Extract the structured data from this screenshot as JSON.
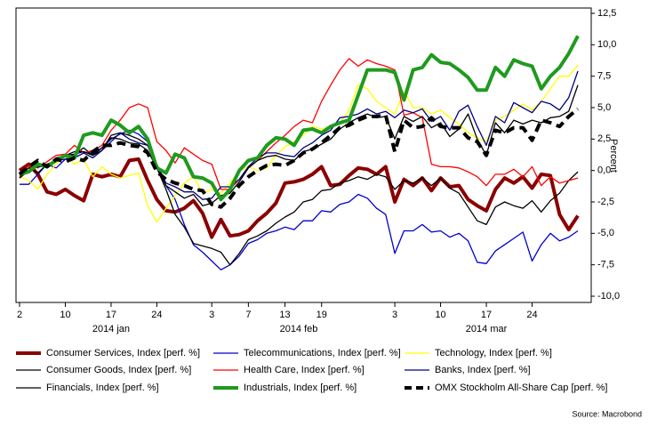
{
  "chart_data": {
    "type": "line",
    "y_label": "Percent",
    "source": "Source: Macrobond",
    "x": [
      "2014-01-02",
      "2014-01-03",
      "2014-01-07",
      "2014-01-08",
      "2014-01-09",
      "2014-01-10",
      "2014-01-13",
      "2014-01-14",
      "2014-01-15",
      "2014-01-16",
      "2014-01-17",
      "2014-01-20",
      "2014-01-21",
      "2014-01-22",
      "2014-01-23",
      "2014-01-24",
      "2014-01-27",
      "2014-01-28",
      "2014-01-29",
      "2014-01-30",
      "2014-01-31",
      "2014-02-03",
      "2014-02-04",
      "2014-02-05",
      "2014-02-06",
      "2014-02-07",
      "2014-02-10",
      "2014-02-11",
      "2014-02-12",
      "2014-02-13",
      "2014-02-14",
      "2014-02-17",
      "2014-02-18",
      "2014-02-19",
      "2014-02-20",
      "2014-02-21",
      "2014-02-24",
      "2014-02-25",
      "2014-02-26",
      "2014-02-27",
      "2014-02-28",
      "2014-03-03",
      "2014-03-04",
      "2014-03-05",
      "2014-03-06",
      "2014-03-07",
      "2014-03-10",
      "2014-03-11",
      "2014-03-12",
      "2014-03-13",
      "2014-03-14",
      "2014-03-17",
      "2014-03-18",
      "2014-03-19",
      "2014-03-20",
      "2014-03-21",
      "2014-03-24",
      "2014-03-25",
      "2014-03-26",
      "2014-03-27",
      "2014-03-28",
      "2014-03-31"
    ],
    "xticks": [
      {
        "value": "2014-01-02",
        "label": "2"
      },
      {
        "value": "2014-01-10",
        "label": "10"
      },
      {
        "value": "2014-01-17",
        "label": "17"
      },
      {
        "value": "2014-01-24",
        "label": "24"
      },
      {
        "value": "2014-02-03",
        "label": "3"
      },
      {
        "value": "2014-02-07",
        "label": "7"
      },
      {
        "value": "2014-02-13",
        "label": "13"
      },
      {
        "value": "2014-02-19",
        "label": "19"
      },
      {
        "value": "2014-03-03",
        "label": "3"
      },
      {
        "value": "2014-03-10",
        "label": "10"
      },
      {
        "value": "2014-03-17",
        "label": "17"
      },
      {
        "value": "2014-03-24",
        "label": "24"
      }
    ],
    "month_labels": [
      {
        "value": "2014-01",
        "label": "2014 jan"
      },
      {
        "value": "2014-02",
        "label": "2014 feb"
      },
      {
        "value": "2014-03",
        "label": "2014 mar"
      }
    ],
    "ylim": [
      -10,
      12.5
    ],
    "yticks": [
      {
        "value": 12.5,
        "label": "12,5"
      },
      {
        "value": 10,
        "label": "10,0"
      },
      {
        "value": 7.5,
        "label": "7,5"
      },
      {
        "value": 5,
        "label": "5,0"
      },
      {
        "value": 2.5,
        "label": "2,5"
      },
      {
        "value": 0,
        "label": "0,0"
      },
      {
        "value": -2.5,
        "label": "-2,5"
      },
      {
        "value": -5,
        "label": "-5,0"
      },
      {
        "value": -7.5,
        "label": "-7,5"
      },
      {
        "value": -10,
        "label": "-10,0"
      }
    ],
    "series": [
      {
        "name": "Consumer Services, Index [perf. %]",
        "color": "#8b0000",
        "width": 4,
        "dash": false,
        "values": [
          0,
          0.5,
          -0.3,
          -1.7,
          -1.9,
          -1.5,
          -2.0,
          -2.4,
          -0.3,
          -0.5,
          -0.3,
          -0.5,
          0.8,
          0.9,
          -0.8,
          -2.3,
          -3.2,
          -3.3,
          -3.0,
          -2.4,
          -3.4,
          -5.3,
          -3.9,
          -5.2,
          -5.1,
          -4.8,
          -4.0,
          -3.4,
          -2.6,
          -1.0,
          -0.9,
          -0.7,
          -0.3,
          0.3,
          -1.2,
          -1.1,
          -0.4,
          0.2,
          0.1,
          -0.3,
          0.3,
          -2.5,
          -0.7,
          -1.2,
          -0.6,
          -1.6,
          -0.6,
          -1.3,
          -1.2,
          -2.3,
          -2.8,
          -3.2,
          -1.5,
          -0.6,
          -1.0,
          -0.5,
          -1.4,
          -0.3,
          -0.4,
          -3.5,
          -4.7,
          -3.6
        ]
      },
      {
        "name": "Telecommunications, Index [perf. %]",
        "color": "#0000cc",
        "width": 1.3,
        "dash": false,
        "values": [
          -1.1,
          -1.1,
          -0.3,
          0.5,
          0.2,
          0.9,
          1.3,
          1.5,
          1.3,
          1.8,
          2.5,
          2.9,
          3.2,
          2.9,
          2.3,
          0.3,
          -1.2,
          -2.3,
          -4.3,
          -5.9,
          -6.5,
          -7.2,
          -7.9,
          -7.5,
          -6.8,
          -5.8,
          -5.5,
          -5.0,
          -4.8,
          -4.5,
          -4.7,
          -4.0,
          -4.0,
          -3.2,
          -3.3,
          -2.7,
          -2.5,
          -1.9,
          -2.2,
          -3.0,
          -3.5,
          -6.6,
          -4.8,
          -4.8,
          -4.3,
          -4.9,
          -4.8,
          -5.3,
          -5.0,
          -5.6,
          -7.3,
          -7.4,
          -6.4,
          -5.9,
          -5.4,
          -4.9,
          -7.2,
          -5.9,
          -5.0,
          -5.6,
          -5.3,
          -4.8
        ]
      },
      {
        "name": "Technology, Index [perf. %]",
        "color": "#ffff00",
        "width": 1.3,
        "dash": false,
        "values": [
          -0.5,
          -0.8,
          -1.5,
          -0.3,
          0.5,
          1.2,
          0.5,
          0.9,
          -0.5,
          0.3,
          -0.3,
          -0.6,
          -0.4,
          -0.2,
          -2.8,
          -4.1,
          -3.0,
          -2.0,
          -1.0,
          -0.5,
          -1.8,
          -1.5,
          -1.8,
          -1.0,
          0.0,
          0.3,
          0.0,
          0.2,
          1.2,
          1.9,
          2.3,
          2.8,
          3.5,
          3.3,
          3.5,
          3.8,
          4.8,
          6.8,
          6.5,
          5.5,
          5.0,
          4.5,
          6.3,
          5.0,
          5.0,
          4.5,
          4.8,
          4.2,
          3.7,
          3.0,
          2.6,
          2.3,
          4.0,
          4.3,
          4.8,
          5.3,
          4.8,
          5.5,
          6.5,
          7.5,
          7.5,
          8.4
        ]
      },
      {
        "name": "Consumer Goods, Index [perf. %]",
        "color": "#000000",
        "width": 1.3,
        "dash": false,
        "values": [
          -0.4,
          0.2,
          -0.2,
          0.5,
          0.8,
          1.2,
          1.3,
          1.8,
          1.2,
          1.6,
          2.8,
          3.0,
          2.8,
          2.5,
          2.0,
          0.2,
          -1.5,
          -3.5,
          -4.5,
          -5.8,
          -6.0,
          -6.2,
          -6.5,
          -7.5,
          -6.6,
          -5.5,
          -5.2,
          -4.8,
          -4.2,
          -3.7,
          -3.3,
          -2.5,
          -2.3,
          -1.6,
          -1.5,
          -1.0,
          -0.8,
          -0.5,
          -0.7,
          -0.3,
          -0.5,
          -1.5,
          -0.8,
          -1.0,
          -0.6,
          -1.2,
          -0.6,
          -1.4,
          -1.8,
          -2.9,
          -4.0,
          -4.3,
          -2.9,
          -2.5,
          -2.8,
          -3.0,
          -2.4,
          -3.3,
          -2.4,
          -1.8,
          -0.8,
          -0.1
        ]
      },
      {
        "name": "Health Care, Index [perf. %]",
        "color": "#ff0000",
        "width": 1.3,
        "dash": false,
        "values": [
          -0.5,
          0.4,
          0.2,
          0.7,
          1.2,
          1.3,
          2.0,
          1.4,
          1.6,
          2.0,
          3.2,
          4.0,
          5.0,
          5.3,
          5.0,
          2.3,
          1.6,
          0.6,
          1.8,
          1.3,
          0.8,
          0.5,
          -1.5,
          -1.5,
          -0.7,
          0.2,
          0.8,
          1.5,
          2.2,
          2.8,
          3.5,
          4.0,
          3.8,
          5.5,
          6.8,
          8.0,
          8.9,
          8.3,
          8.8,
          8.5,
          8.3,
          8.0,
          4.4,
          4.6,
          4.2,
          0.5,
          0.3,
          0.3,
          0.2,
          -0.1,
          -0.5,
          -1.2,
          -0.3,
          -0.3,
          0.1,
          -0.5,
          0.3,
          -1.2,
          -0.5,
          -1.0,
          -0.8,
          -0.6
        ]
      },
      {
        "name": "Banks, Index [perf. %]",
        "color": "#000080",
        "width": 1.3,
        "dash": false,
        "values": [
          -0.6,
          0.0,
          0.3,
          0.3,
          0.8,
          0.9,
          1.0,
          1.4,
          1.0,
          1.6,
          2.3,
          3.0,
          2.5,
          2.2,
          2.0,
          0.5,
          -1.0,
          -1.3,
          -1.7,
          -1.7,
          -2.3,
          -2.2,
          -1.3,
          -1.3,
          -0.7,
          0.3,
          1.0,
          1.4,
          1.4,
          1.2,
          1.1,
          1.8,
          2.2,
          2.8,
          3.2,
          4.2,
          4.3,
          4.5,
          4.9,
          4.5,
          4.7,
          4.2,
          4.8,
          4.6,
          4.9,
          3.9,
          4.3,
          3.2,
          4.7,
          5.2,
          3.5,
          2.0,
          4.3,
          3.8,
          5.4,
          5.0,
          4.6,
          5.5,
          5.3,
          4.8,
          5.8,
          7.9
        ]
      },
      {
        "name": "Financials, Index [perf. %]",
        "color": "#000000",
        "width": 1.3,
        "dash": false,
        "values": [
          -0.6,
          0.0,
          0.4,
          0.3,
          1.0,
          1.2,
          1.5,
          1.5,
          1.2,
          1.8,
          2.6,
          2.5,
          2.2,
          2.1,
          1.6,
          0.2,
          -1.2,
          -1.7,
          -2.2,
          -1.9,
          -2.8,
          -2.6,
          -2.0,
          -1.8,
          -0.9,
          0.2,
          0.8,
          1.1,
          1.2,
          0.9,
          0.8,
          1.5,
          1.7,
          2.1,
          2.5,
          3.3,
          3.8,
          4.2,
          4.5,
          4.2,
          4.3,
          2.5,
          4.3,
          3.9,
          4.3,
          3.4,
          3.8,
          2.7,
          3.3,
          4.5,
          2.5,
          1.2,
          3.8,
          3.0,
          4.0,
          3.7,
          4.0,
          3.8,
          4.2,
          4.3,
          4.7,
          6.8
        ]
      },
      {
        "name": "Industrials, Index [perf. %]",
        "color": "#1f9a1f",
        "width": 4,
        "dash": false,
        "values": [
          -0.3,
          -0.1,
          0.5,
          0.3,
          0.8,
          1.2,
          1.0,
          2.8,
          3.0,
          2.8,
          4.0,
          3.6,
          3.0,
          3.5,
          2.5,
          0.2,
          -0.2,
          1.3,
          1.0,
          -0.5,
          -0.6,
          -1.0,
          -2.3,
          -1.5,
          0.0,
          0.8,
          1.0,
          2.0,
          2.6,
          2.5,
          2.0,
          3.2,
          3.3,
          3.0,
          3.5,
          3.8,
          4.0,
          6.0,
          8.0,
          8.0,
          8.0,
          7.8,
          5.6,
          8.0,
          8.2,
          9.2,
          8.6,
          8.5,
          8.0,
          7.4,
          6.4,
          6.4,
          8.2,
          7.5,
          8.8,
          8.5,
          8.3,
          6.5,
          7.5,
          8.2,
          9.3,
          10.7
        ]
      },
      {
        "name": "OMX Stockholm All-Share Cap [perf. %]",
        "color": "#000000",
        "width": 4,
        "dash": true,
        "values": [
          -0.3,
          0.3,
          0.8,
          0.3,
          0.9,
          0.7,
          1.0,
          0.8,
          1.5,
          2.0,
          2.0,
          2.2,
          2.0,
          1.9,
          1.4,
          -0.1,
          -0.7,
          -1.0,
          -1.2,
          -1.5,
          -1.6,
          -2.7,
          -2.9,
          -2.2,
          -1.2,
          -0.5,
          0.0,
          0.4,
          0.5,
          0.4,
          0.8,
          1.4,
          1.7,
          2.2,
          2.8,
          3.4,
          3.6,
          4.0,
          4.3,
          4.3,
          4.4,
          1.5,
          4.0,
          3.4,
          3.5,
          4.2,
          3.5,
          3.4,
          3.4,
          2.6,
          2.3,
          1.2,
          3.2,
          3.0,
          3.4,
          3.4,
          2.4,
          4.0,
          3.8,
          3.5,
          4.3,
          4.9
        ]
      }
    ]
  }
}
